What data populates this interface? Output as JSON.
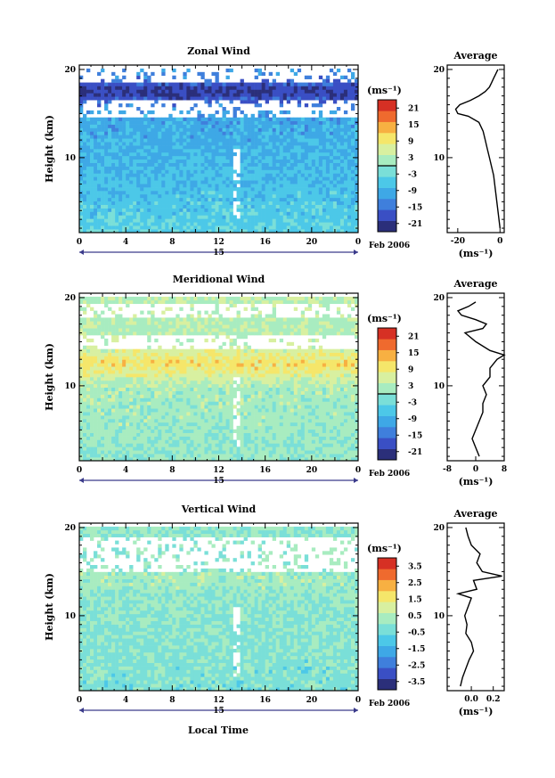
{
  "figure": {
    "xlabel": "Local Time",
    "date_label": "Feb 2006",
    "day_label": "15",
    "ylabel": "Height (km)",
    "avg_title": "Average",
    "unit": "(ms⁻¹)"
  },
  "colormap": [
    "#2b2f7a",
    "#3a4fc4",
    "#3f7fdc",
    "#3ea8e6",
    "#4cc8e8",
    "#7adfd8",
    "#a8ecc0",
    "#d8f0a0",
    "#f5e66a",
    "#f7b042",
    "#ef6a2e",
    "#d63024"
  ],
  "chart_data": [
    {
      "type": "heatmap",
      "title": "Zonal Wind",
      "xlabel": "Local Time",
      "ylabel": "Height (km)",
      "x_ticks": [
        "0",
        "4",
        "8",
        "12",
        "16",
        "20",
        "0"
      ],
      "y_ticks": [
        "20",
        "10"
      ],
      "xlim": [
        0,
        24
      ],
      "ylim": [
        1.5,
        20.5
      ],
      "colorbar": {
        "ticks": [
          "21",
          "15",
          "9",
          "3",
          "-3",
          "-9",
          "-15",
          "-21"
        ],
        "range": [
          -24,
          24
        ]
      },
      "field": {
        "base_lo": -4,
        "base_hi": -10,
        "jet_height": 17.5,
        "jet_value": -20,
        "gap_heights": [
          15.5,
          19.5
        ]
      },
      "average_profile": {
        "xlim": [
          -25,
          2
        ],
        "x_ticks": [
          "-20",
          "0"
        ],
        "y_ticks": [
          "20",
          "10"
        ],
        "height": [
          2,
          4,
          6,
          8,
          10,
          11,
          12,
          13,
          14,
          14.7,
          15,
          15.5,
          16,
          16.5,
          17,
          17.5,
          18,
          18.5,
          19,
          19.5,
          20
        ],
        "value": [
          0,
          -1,
          -2,
          -3,
          -5,
          -6,
          -7,
          -8,
          -10,
          -15,
          -20,
          -21,
          -19,
          -14,
          -10,
          -7,
          -5,
          -4,
          -3,
          -2,
          -1
        ]
      }
    },
    {
      "type": "heatmap",
      "title": "Meridional Wind",
      "xlabel": "Local Time",
      "ylabel": "Height (km)",
      "x_ticks": [
        "0",
        "4",
        "8",
        "12",
        "16",
        "20",
        "0"
      ],
      "y_ticks": [
        "20",
        "10"
      ],
      "xlim": [
        0,
        24
      ],
      "ylim": [
        1.5,
        20.5
      ],
      "colorbar": {
        "ticks": [
          "21",
          "15",
          "9",
          "3",
          "-3",
          "-9",
          "-15",
          "-21"
        ],
        "range": [
          -24,
          24
        ]
      },
      "field": {
        "base_lo": 0,
        "base_hi": 3,
        "jet_height": 12.5,
        "jet_value": 10,
        "gap_heights": [
          15,
          18.5
        ]
      },
      "average_profile": {
        "xlim": [
          -8,
          8
        ],
        "x_ticks": [
          "-8",
          "0",
          "8"
        ],
        "y_ticks": [
          "20",
          "10"
        ],
        "height": [
          2,
          3,
          4,
          5,
          6,
          7,
          8,
          9,
          10,
          11,
          12,
          13,
          13.5,
          14,
          15,
          16,
          16.5,
          17,
          17.5,
          18,
          18.5,
          19,
          19.5
        ],
        "value": [
          1,
          0,
          -1,
          0,
          1,
          2,
          2,
          3,
          2,
          4,
          4,
          6,
          8,
          4,
          0,
          -3,
          2,
          3,
          0,
          -4,
          -5,
          -2,
          0
        ]
      }
    },
    {
      "type": "heatmap",
      "title": "Vertical Wind",
      "xlabel": "Local Time",
      "ylabel": "Height (km)",
      "x_ticks": [
        "0",
        "4",
        "8",
        "12",
        "16",
        "20",
        "0"
      ],
      "y_ticks": [
        "20",
        "10"
      ],
      "xlim": [
        0,
        24
      ],
      "ylim": [
        1.5,
        20.5
      ],
      "colorbar": {
        "ticks": [
          "3.5",
          "2.5",
          "1.5",
          "0.5",
          "-0.5",
          "-1.5",
          "-2.5",
          "-3.5"
        ],
        "range": [
          -4,
          4
        ]
      },
      "field": {
        "base_lo": -0.3,
        "base_hi": 0,
        "jet_height": 14,
        "jet_value": 0.3,
        "gap_heights": [
          16,
          18
        ]
      },
      "average_profile": {
        "xlim": [
          -0.22,
          0.3
        ],
        "x_ticks": [
          "0.0",
          "0.2"
        ],
        "y_ticks": [
          "20",
          "10"
        ],
        "height": [
          2,
          3,
          4,
          5,
          6,
          7,
          8,
          9,
          10,
          11,
          12,
          12.5,
          13,
          14,
          14.5,
          15,
          16,
          17,
          18,
          19,
          20
        ],
        "value": [
          -0.1,
          -0.08,
          -0.05,
          -0.02,
          0.02,
          0.0,
          -0.05,
          -0.04,
          -0.06,
          -0.03,
          0.0,
          -0.12,
          0.05,
          0.02,
          0.28,
          0.1,
          0.05,
          0.08,
          0.0,
          -0.03,
          -0.05
        ]
      }
    }
  ]
}
